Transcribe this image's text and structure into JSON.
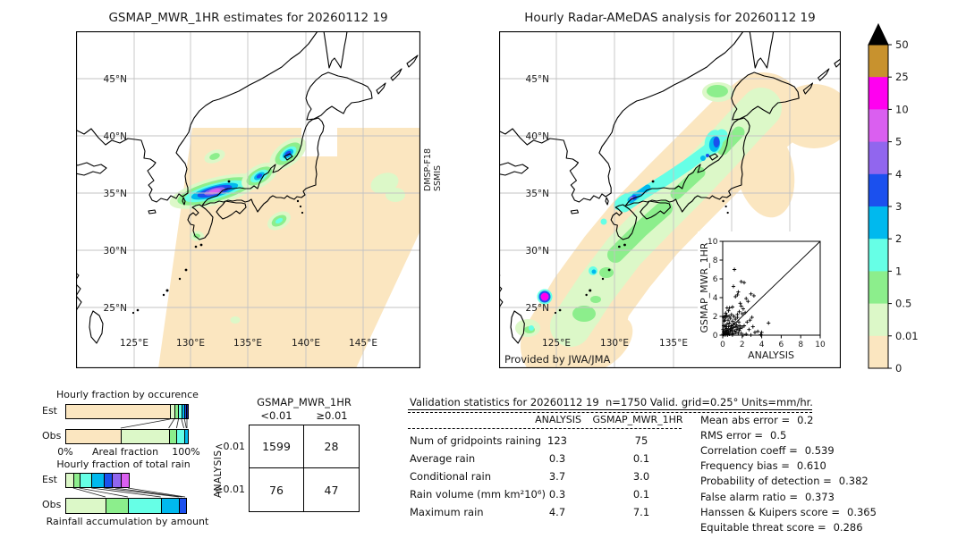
{
  "palette": {
    "wheat": "#fbe6c0",
    "palegreen": "#dcf8c8",
    "green": "#8cee8c",
    "aqua": "#66ffe6",
    "sky": "#00b9ee",
    "blue": "#1b50ee",
    "navy": "#131f8a",
    "purple": "#9166ee",
    "orchid": "#da5ff0",
    "magenta": "#ff00f0"
  },
  "colorbar": {
    "levels": [
      "50",
      "25",
      "10",
      "5",
      "4",
      "3",
      "2",
      "1",
      "0.5",
      "0.01",
      "0"
    ],
    "colors": [
      "#c8922e",
      "#ff00f0",
      "#da5ff0",
      "#9166ee",
      "#1b50ee",
      "#00b9ee",
      "#66ffe6",
      "#8cee8c",
      "#dcf8c8",
      "#fbe6c0"
    ],
    "over_color": "#000000"
  },
  "chart_data": [
    {
      "type": "heatmap",
      "title": "GSMAP_MWR_1HR estimates for 20260112 19",
      "sensor_line1": "DMSP-F18",
      "sensor_line2": "SSMIS",
      "lat_labels": [
        "45°N",
        "40°N",
        "35°N",
        "30°N",
        "25°N"
      ],
      "lon_labels": [
        "125°E",
        "130°E",
        "135°E",
        "140°E",
        "145°E"
      ],
      "legend_levels": [
        0,
        0.01,
        0.5,
        1,
        2,
        3,
        4,
        5,
        10,
        25,
        50
      ],
      "units": "mm/hr"
    },
    {
      "type": "heatmap",
      "title": "Hourly Radar-AMeDAS analysis for 20260112 19",
      "credit": "Provided by JWA/JMA",
      "lat_labels": [
        "45°N",
        "40°N",
        "35°N",
        "30°N",
        "25°N"
      ],
      "lon_labels": [
        "125°E",
        "130°E",
        "135°E"
      ],
      "legend_levels": [
        0,
        0.01,
        0.5,
        1,
        2,
        3,
        4,
        5,
        10,
        25,
        50
      ],
      "units": "mm/hr"
    },
    {
      "type": "scatter",
      "xlabel": "ANALYSIS",
      "ylabel": "GSMAP_MWR_1HR",
      "xlim": [
        0,
        10
      ],
      "ylim": [
        0,
        10
      ],
      "xticks": [
        "0",
        "2",
        "4",
        "6",
        "8",
        "10"
      ],
      "yticks": [
        "0",
        "2",
        "4",
        "6",
        "8",
        "10"
      ],
      "diagonal": true,
      "points": [
        [
          0.05,
          0.1
        ],
        [
          0.1,
          0.35
        ],
        [
          0.15,
          0.05
        ],
        [
          0.2,
          0.6
        ],
        [
          0.2,
          0.15
        ],
        [
          0.25,
          1.0
        ],
        [
          0.3,
          0.45
        ],
        [
          0.3,
          0.05
        ],
        [
          0.35,
          1.9
        ],
        [
          0.4,
          0.7
        ],
        [
          0.4,
          0.2
        ],
        [
          0.45,
          1.2
        ],
        [
          0.5,
          0.5
        ],
        [
          0.5,
          0.1
        ],
        [
          0.55,
          1.6
        ],
        [
          0.6,
          0.9
        ],
        [
          0.6,
          0.3
        ],
        [
          0.65,
          2.0
        ],
        [
          0.7,
          1.3
        ],
        [
          0.7,
          0.1
        ],
        [
          0.75,
          0.6
        ],
        [
          0.8,
          1.8
        ],
        [
          0.8,
          0.4
        ],
        [
          0.85,
          1.0
        ],
        [
          0.9,
          2.2
        ],
        [
          0.9,
          0.7
        ],
        [
          0.95,
          0.2
        ],
        [
          1.0,
          1.5
        ],
        [
          1.0,
          0.5
        ],
        [
          1.05,
          1.1
        ],
        [
          1.1,
          0.8
        ],
        [
          1.1,
          0.15
        ],
        [
          1.15,
          2.0
        ],
        [
          1.2,
          1.3
        ],
        [
          1.25,
          0.45
        ],
        [
          1.3,
          1.7
        ],
        [
          1.3,
          0.9
        ],
        [
          1.35,
          0.3
        ],
        [
          1.4,
          1.1
        ],
        [
          1.45,
          0.6
        ],
        [
          1.5,
          1.9
        ],
        [
          1.55,
          0.85
        ],
        [
          1.6,
          0.2
        ],
        [
          1.65,
          1.4
        ],
        [
          1.7,
          0.5
        ],
        [
          1.75,
          1.0
        ],
        [
          1.8,
          0.7
        ],
        [
          0.1,
          1.0
        ],
        [
          0.2,
          2.0
        ],
        [
          0.15,
          1.5
        ],
        [
          0.05,
          0.6
        ],
        [
          0.3,
          2.35
        ],
        [
          0.1,
          1.9
        ],
        [
          0.25,
          1.6
        ],
        [
          0.4,
          2.1
        ],
        [
          0.35,
          0.9
        ],
        [
          1.2,
          7.0
        ],
        [
          1.9,
          5.7
        ],
        [
          2.2,
          5.6
        ],
        [
          1.1,
          5.2
        ],
        [
          1.6,
          4.6
        ],
        [
          1.5,
          4.3
        ],
        [
          2.9,
          4.4
        ],
        [
          3.2,
          4.2
        ],
        [
          1.3,
          4.1
        ],
        [
          2.4,
          3.9
        ],
        [
          2.6,
          3.6
        ],
        [
          1.8,
          3.4
        ],
        [
          1.0,
          3.0
        ],
        [
          0.7,
          2.9
        ],
        [
          1.9,
          3.1
        ],
        [
          2.1,
          2.8
        ],
        [
          2.3,
          2.4
        ],
        [
          2.0,
          2.3
        ],
        [
          1.7,
          2.5
        ],
        [
          1.5,
          2.2
        ],
        [
          4.7,
          1.3
        ],
        [
          3.6,
          0.4
        ],
        [
          3.3,
          0.3
        ],
        [
          3.0,
          1.9
        ],
        [
          2.8,
          1.6
        ],
        [
          2.5,
          1.4
        ],
        [
          3.1,
          0.9
        ],
        [
          2.7,
          0.6
        ],
        [
          2.2,
          1.0
        ],
        [
          2.0,
          0.85
        ],
        [
          1.9,
          0.2
        ],
        [
          2.4,
          0.1
        ],
        [
          0.5,
          0.02
        ],
        [
          1.0,
          0.02
        ],
        [
          2.1,
          0.02
        ],
        [
          2.9,
          0.02
        ],
        [
          3.9,
          0.05
        ],
        [
          4.0,
          0.3
        ],
        [
          0.6,
          2.6
        ],
        [
          0.45,
          2.9
        ]
      ]
    },
    {
      "type": "bar",
      "subtype": "stacked-horizontal-fraction",
      "title": "Hourly fraction by occurence",
      "categories": [
        "Est",
        "Obs"
      ],
      "xlabel": "Areal fraction",
      "x_min_label": "0%",
      "x_max_label": "100%",
      "series": [
        {
          "name": "Est",
          "segments": [
            [
              "wheat",
              86
            ],
            [
              "palegreen",
              3.5
            ],
            [
              "green",
              3.5
            ],
            [
              "aqua",
              2.5
            ],
            [
              "sky",
              2
            ],
            [
              "blue",
              1.5
            ],
            [
              "navy",
              1
            ]
          ]
        },
        {
          "name": "Obs",
          "segments": [
            [
              "wheat",
              45.5
            ],
            [
              "palegreen",
              39.5
            ],
            [
              "green",
              6.5
            ],
            [
              "aqua",
              6
            ],
            [
              "sky",
              2.5
            ]
          ]
        }
      ],
      "links": [
        [
          86,
          45.5
        ],
        [
          89.5,
          85
        ],
        [
          93,
          91.5
        ],
        [
          95.5,
          97.5
        ],
        [
          98,
          99.5
        ],
        [
          100,
          100
        ]
      ]
    },
    {
      "type": "bar",
      "subtype": "stacked-horizontal-fraction",
      "title": "Hourly fraction of total rain",
      "footer": "Rainfall accumulation by amount",
      "categories": [
        "Est",
        "Obs"
      ],
      "series": [
        {
          "name": "Est",
          "segments": [
            [
              "palegreen",
              6.5
            ],
            [
              "green",
              5
            ],
            [
              "aqua",
              10
            ],
            [
              "sky",
              10
            ],
            [
              "blue",
              7
            ],
            [
              "purple",
              7
            ],
            [
              "orchid",
              6
            ]
          ]
        },
        {
          "name": "Obs",
          "segments": [
            [
              "palegreen",
              33
            ],
            [
              "green",
              18.5
            ],
            [
              "aqua",
              27
            ],
            [
              "sky",
              15
            ],
            [
              "blue",
              5
            ]
          ]
        }
      ],
      "links": [
        [
          6.5,
          33
        ],
        [
          11.5,
          51.5
        ],
        [
          21.5,
          78.5
        ],
        [
          31.5,
          93.5
        ],
        [
          41,
          96
        ],
        [
          51.5,
          98.5
        ]
      ]
    },
    {
      "type": "table",
      "title": "GSMAP_MWR_1HR",
      "row_axis_label": "ANALYSIS",
      "col_labels": [
        "<0.01",
        "≥0.01"
      ],
      "row_labels": [
        "<0.01",
        "≥0.01"
      ],
      "values": [
        [
          "1599",
          "28"
        ],
        [
          "76",
          "47"
        ]
      ]
    },
    {
      "type": "table",
      "title": "Validation statistics for 20260112 19  n=1750 Valid. grid=0.25° Units=mm/hr.",
      "columns": [
        "ANALYSIS",
        "GSMAP_MWR_1HR"
      ],
      "rows": [
        {
          "label": "Num of gridpoints raining",
          "analysis": "123",
          "gsmap": "75"
        },
        {
          "label": "Average rain",
          "analysis": "0.3",
          "gsmap": "0.1"
        },
        {
          "label": "Conditional rain",
          "analysis": "3.7",
          "gsmap": "3.0"
        },
        {
          "label": "Rain volume (mm km²10⁶)",
          "analysis": "0.3",
          "gsmap": "0.1"
        },
        {
          "label": "Maximum rain",
          "analysis": "4.7",
          "gsmap": "7.1"
        }
      ],
      "stats": [
        {
          "label": "Mean abs error =",
          "value": "0.2"
        },
        {
          "label": "RMS error =",
          "value": "0.5"
        },
        {
          "label": "Correlation coeff =",
          "value": "0.539"
        },
        {
          "label": "Frequency bias =",
          "value": "0.610"
        },
        {
          "label": "Probability of detection =",
          "value": "0.382"
        },
        {
          "label": "False alarm ratio =",
          "value": "0.373"
        },
        {
          "label": "Hanssen & Kuipers score =",
          "value": "0.365"
        },
        {
          "label": "Equitable threat score =",
          "value": "0.286"
        }
      ]
    }
  ]
}
